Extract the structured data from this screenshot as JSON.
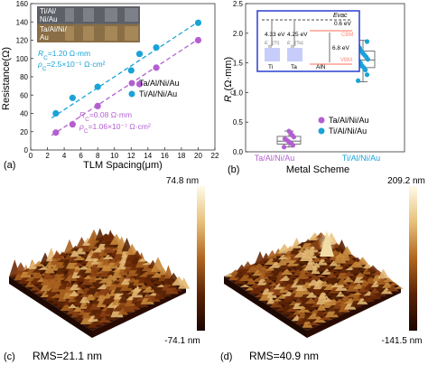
{
  "panel_labels": [
    "(a)",
    "(b)",
    "(c)",
    "(d)"
  ],
  "chart_data": [
    {
      "type": "scatter",
      "panel": "(a)",
      "xlabel": "TLM Spacing(μm)",
      "ylabel": "Resistance(Ω)",
      "xlim": [
        0,
        22
      ],
      "ylim": [
        0,
        160
      ],
      "xticks": [
        "0",
        "2",
        "4",
        "6",
        "8",
        "10",
        "12",
        "14",
        "16",
        "18",
        "20",
        "22"
      ],
      "yticks": [
        "0",
        "20",
        "40",
        "60",
        "80",
        "100",
        "120",
        "140",
        "160"
      ],
      "legend_position": "right",
      "inset_labels": [
        "Ti/Al/\nNi/Au",
        "Ta/Al/Ni/\nAu"
      ],
      "series": [
        {
          "name": "Ta/Al/Ni/Au",
          "color": "#b35fd0",
          "marker": "circle",
          "x": [
            3,
            5,
            8,
            13,
            15,
            20
          ],
          "y": [
            19,
            28,
            48,
            72,
            90,
            120
          ],
          "fit": [
            [
              2.5,
              16
            ],
            [
              20.5,
              124
            ]
          ],
          "annotation": [
            "R_C=0.08 Ω·mm",
            "ρ_C=1.06×10⁻⁷ Ω·cm²"
          ]
        },
        {
          "name": "Ti/Al/Ni/Au",
          "color": "#1aa3d6",
          "marker": "circle",
          "x": [
            3,
            5,
            8,
            12,
            13,
            15,
            20
          ],
          "y": [
            40,
            57,
            69,
            87,
            105,
            112,
            139
          ],
          "fit": [
            [
              2.5,
              35
            ],
            [
              20.5,
              143
            ]
          ],
          "annotation": [
            "R_C=1.20 Ω·mm",
            "ρ_C=2.5×10⁻⁵ Ω·cm²"
          ]
        }
      ]
    },
    {
      "type": "box",
      "panel": "(b)",
      "xlabel": "Metal Scheme",
      "ylabel": "R_C(Ω·mm)",
      "ylim": [
        0,
        2.5
      ],
      "yticks": [
        "0.0",
        "0.5",
        "1.0",
        "1.5",
        "2.0",
        "2.5"
      ],
      "categories": [
        "Ta/Al/Ni/Au",
        "Ti/Al/Ni/Au"
      ],
      "legend_position": "bottom-right",
      "series": [
        {
          "name": "Ta/Al/Ni/Au",
          "color": "#b35fd0",
          "min": 0.08,
          "q1": 0.13,
          "median": 0.18,
          "q3": 0.26,
          "max": 0.35,
          "points": [
            0.08,
            0.11,
            0.14,
            0.16,
            0.18,
            0.2,
            0.22,
            0.25,
            0.28,
            0.32,
            0.35
          ]
        },
        {
          "name": "Ti/Al/Ni/Au",
          "color": "#1aa3d6",
          "min": 1.18,
          "q1": 1.42,
          "median": 1.55,
          "q3": 1.7,
          "max": 1.88,
          "points": [
            1.2,
            1.3,
            1.38,
            1.42,
            1.45,
            1.5,
            1.53,
            1.56,
            1.6,
            1.63,
            1.66,
            1.7,
            1.75,
            1.8,
            1.86
          ]
        }
      ],
      "inset": {
        "Evac_label": "Evac",
        "gap_label": "0.6 eV",
        "CBM_label": "CBM",
        "VBM_label": "VBM",
        "Ti_wf": "4.33 eV",
        "Ta_wf": "4.25 eV",
        "Ti_wf_label": "E_w(Ti)",
        "Ta_wf_label": "E_w(Ta)",
        "AlN_gap": "6.8 eV",
        "metals": [
          "Ti",
          "Ta",
          "AlN"
        ]
      }
    }
  ],
  "afm": [
    {
      "panel": "(c)",
      "max": "74.8 nm",
      "min": "-74.1 nm",
      "rms": "RMS=21.1 nm"
    },
    {
      "panel": "(d)",
      "max": "209.2 nm",
      "min": "-141.5 nm",
      "rms": "RMS=40.9 nm"
    }
  ]
}
